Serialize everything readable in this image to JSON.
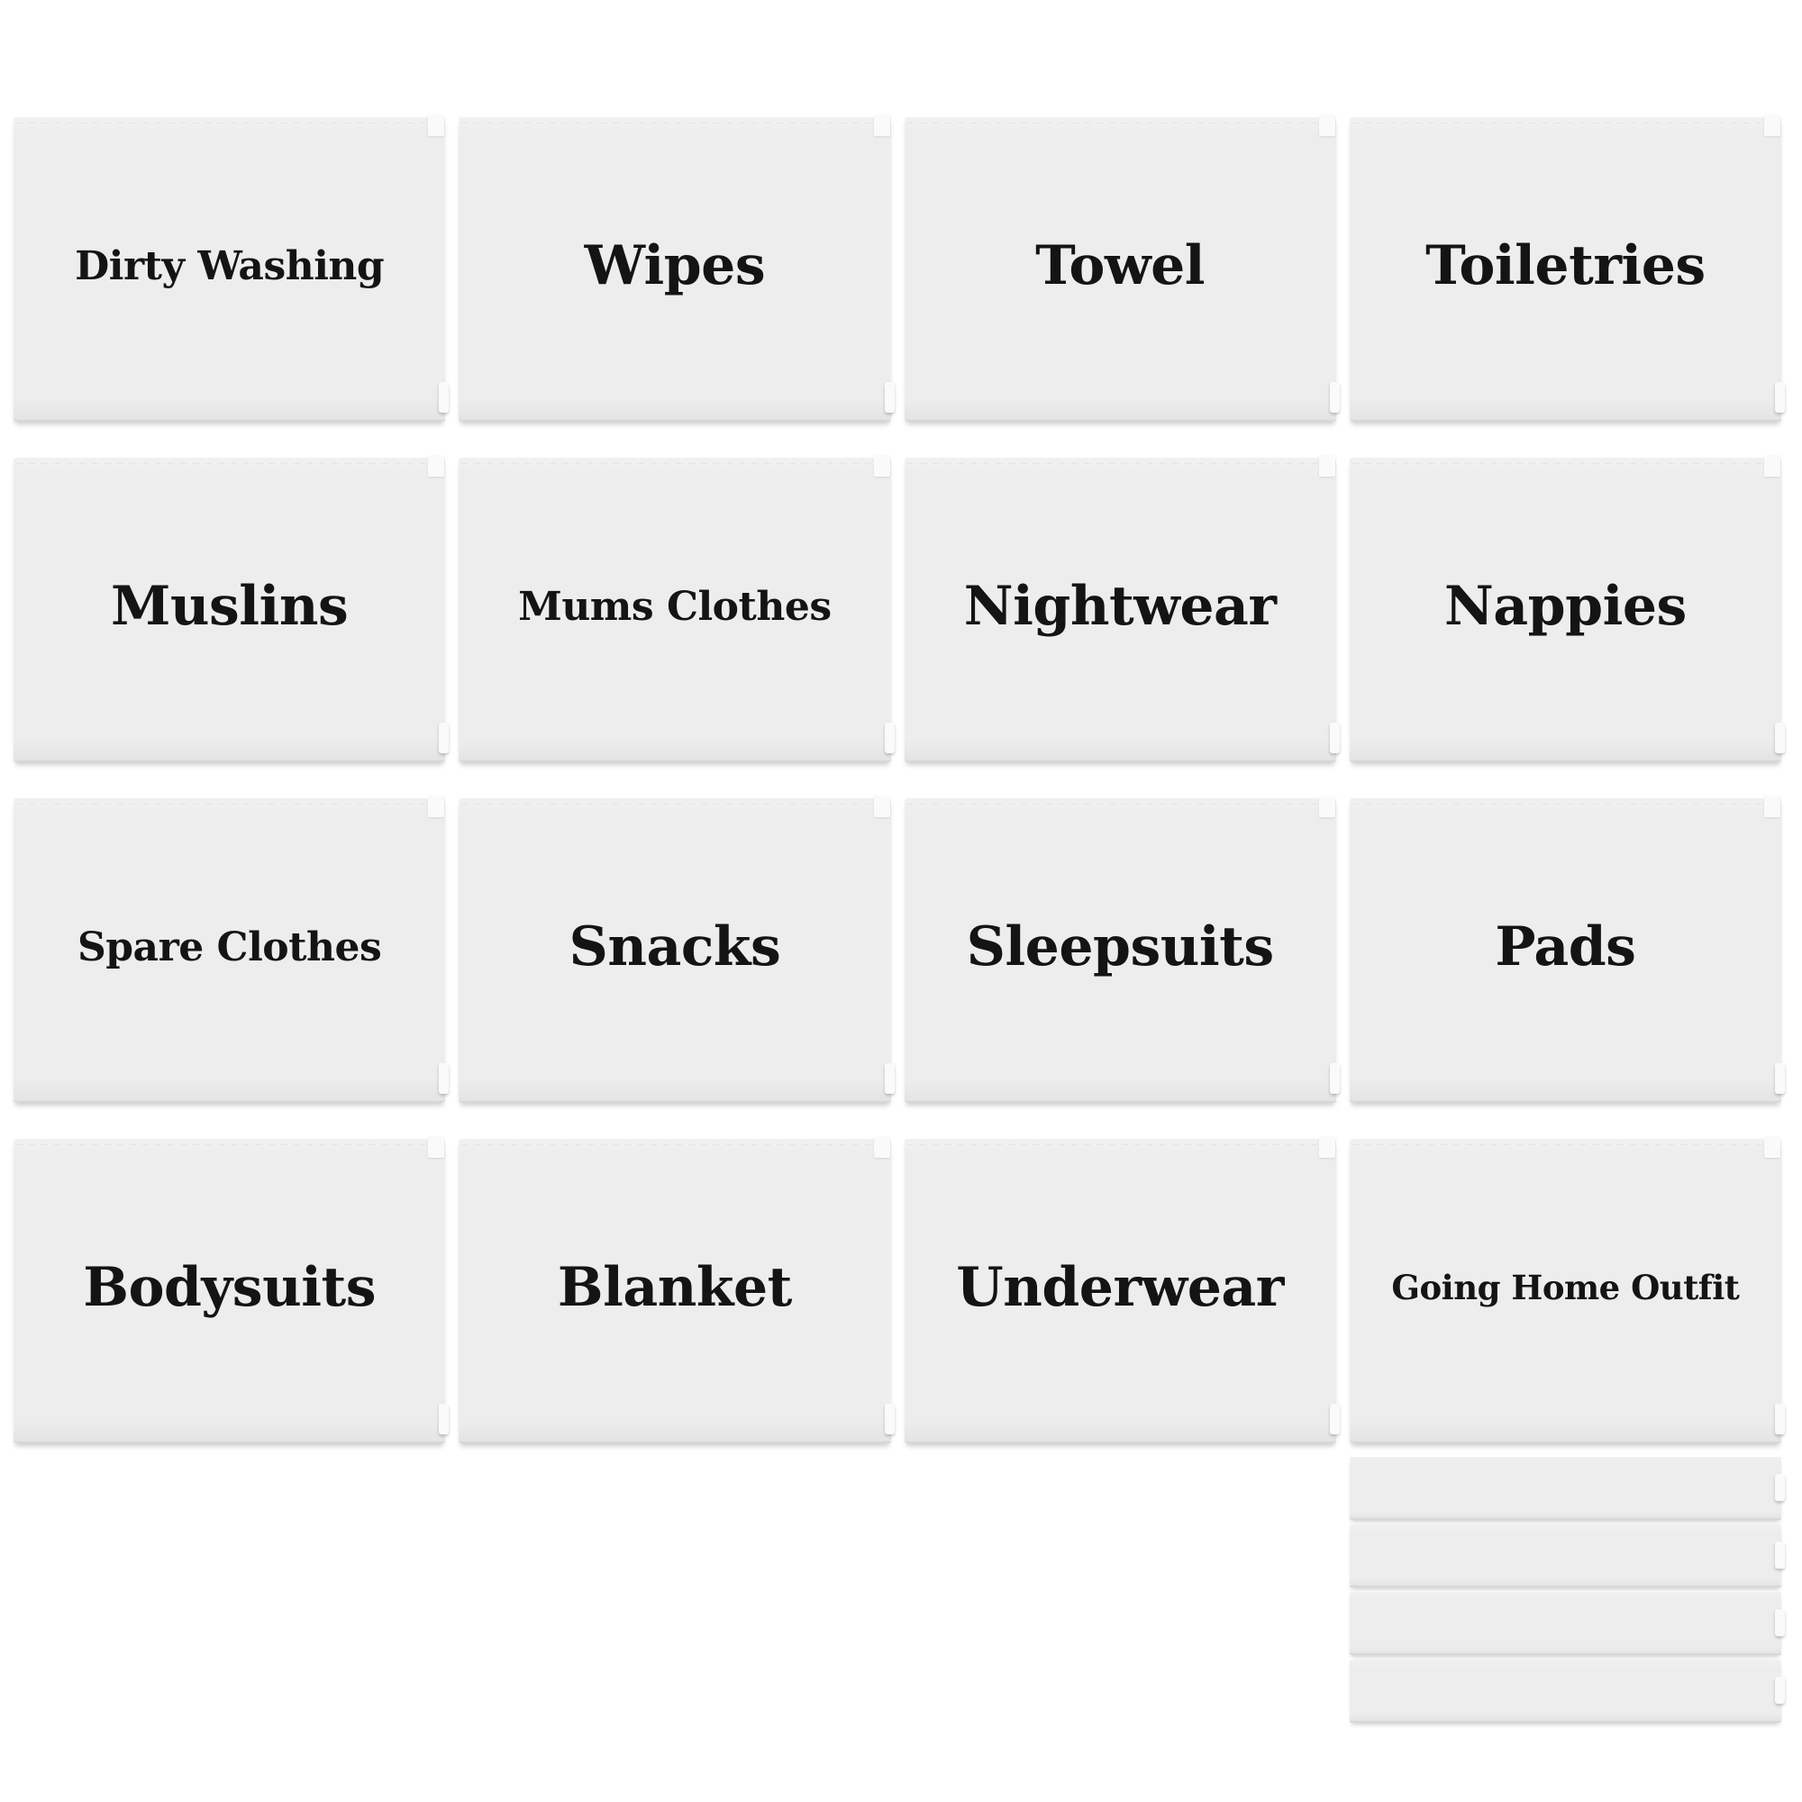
{
  "cards": [
    {
      "label": "Dirty Washing",
      "size": "md"
    },
    {
      "label": "Wipes",
      "size": "lg"
    },
    {
      "label": "Towel",
      "size": "lg"
    },
    {
      "label": "Toiletries",
      "size": "lg"
    },
    {
      "label": "Muslins",
      "size": "lg"
    },
    {
      "label": "Mums Clothes",
      "size": "md"
    },
    {
      "label": "Nightwear",
      "size": "lg"
    },
    {
      "label": "Nappies",
      "size": "lg"
    },
    {
      "label": "Spare Clothes",
      "size": "md"
    },
    {
      "label": "Snacks",
      "size": "lg"
    },
    {
      "label": "Sleepsuits",
      "size": "lg"
    },
    {
      "label": "Pads",
      "size": "lg"
    },
    {
      "label": "Bodysuits",
      "size": "lg"
    },
    {
      "label": "Blanket",
      "size": "lg"
    },
    {
      "label": "Underwear",
      "size": "lg"
    },
    {
      "label": "Going Home Outfit",
      "size": "sm"
    }
  ],
  "blank_strips": {
    "count": 4
  },
  "colors": {
    "card_bg": "#ededee",
    "card_edge": "#d7d7d9",
    "text": "#141414",
    "page_bg": "#ffffff",
    "tab": "#fafafa"
  }
}
